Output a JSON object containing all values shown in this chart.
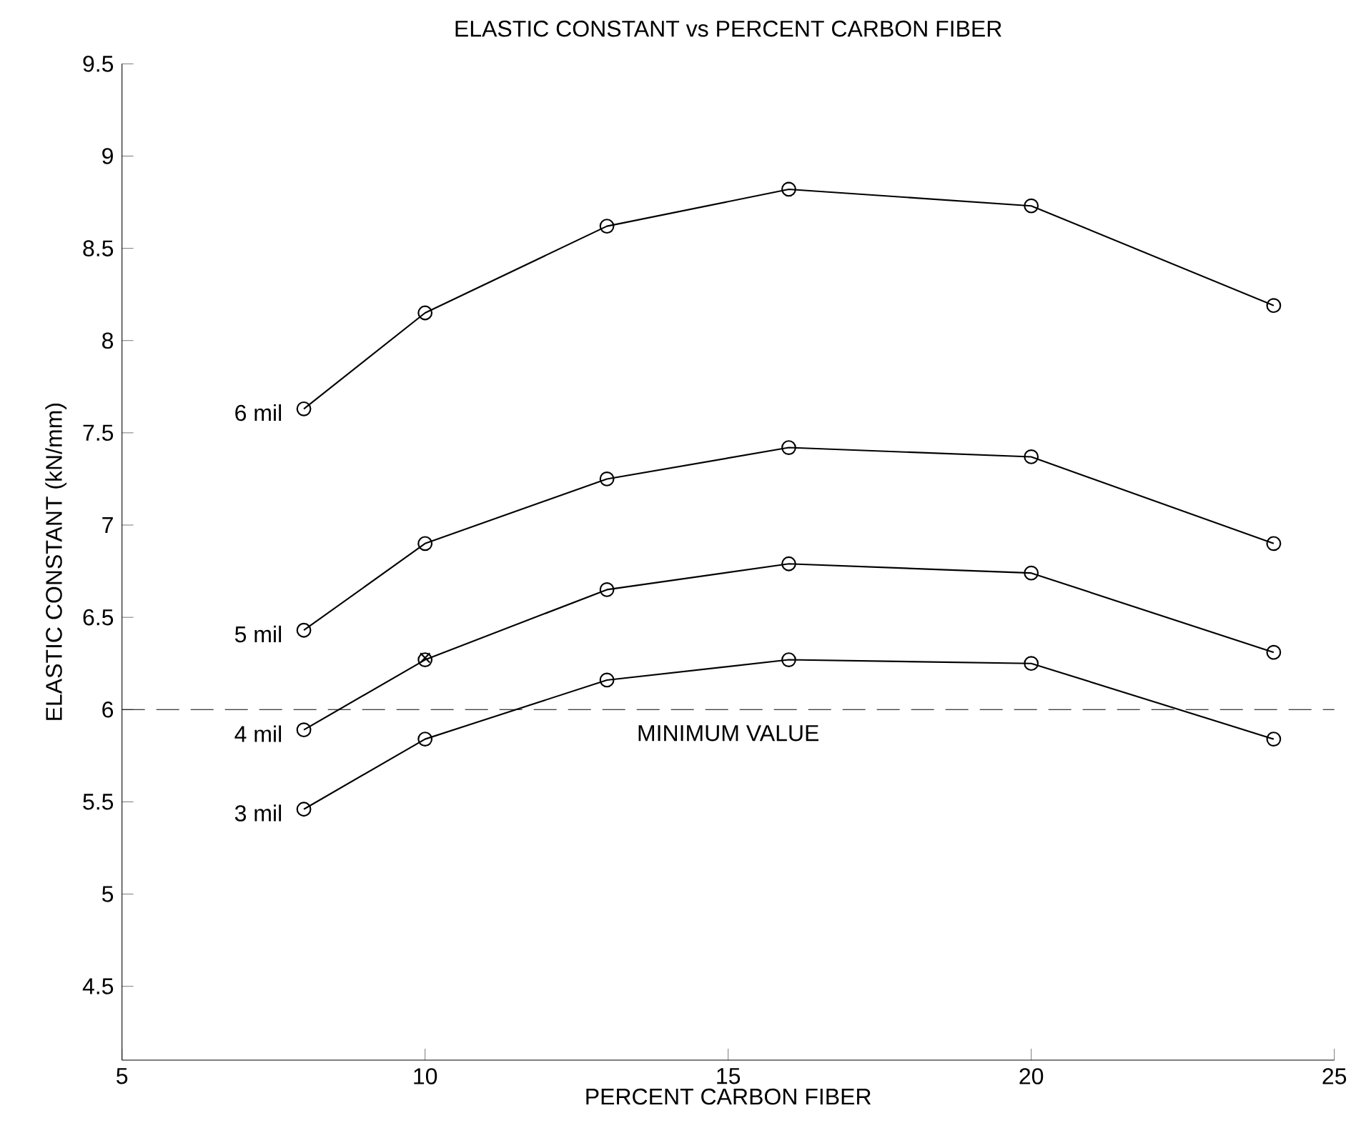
{
  "chart_data": {
    "type": "line",
    "title": "ELASTIC CONSTANT  vs  PERCENT CARBON FIBER",
    "xlabel": "PERCENT CARBON FIBER",
    "ylabel": "ELASTIC CONSTANT (kN/mm)",
    "x": [
      8,
      10,
      13,
      16,
      20,
      24
    ],
    "series": [
      {
        "name": "6 mil",
        "color": "#000000",
        "values": [
          7.63,
          8.15,
          8.62,
          8.82,
          8.73,
          8.19
        ]
      },
      {
        "name": "5 mil",
        "color": "#000000",
        "values": [
          6.43,
          6.9,
          7.25,
          7.42,
          7.37,
          6.9
        ]
      },
      {
        "name": "4 mil",
        "color": "#000000",
        "values": [
          5.89,
          6.27,
          6.65,
          6.79,
          6.74,
          6.31
        ]
      },
      {
        "name": "3 mil",
        "color": "#000000",
        "values": [
          5.46,
          5.84,
          6.16,
          6.27,
          6.25,
          5.84
        ]
      },
      {
        "type": "scatter",
        "marker": "cross",
        "color": "#000000",
        "x": [
          10
        ],
        "values": [
          6.28
        ]
      }
    ],
    "xlim": [
      5,
      25
    ],
    "xticks": [
      5,
      10,
      15,
      20,
      25
    ],
    "ylim": [
      4.1,
      9.5
    ],
    "yticks": [
      4.5,
      5,
      5.5,
      6,
      6.5,
      7,
      7.5,
      8,
      8.5,
      9,
      9.5
    ],
    "ref_lines": [
      {
        "axis": "y",
        "value": 6,
        "label": "MINIMUM VALUE",
        "color": "#000000",
        "line_style": "dashed"
      }
    ],
    "marker": "circle",
    "line_style": "solid",
    "grid": false
  }
}
